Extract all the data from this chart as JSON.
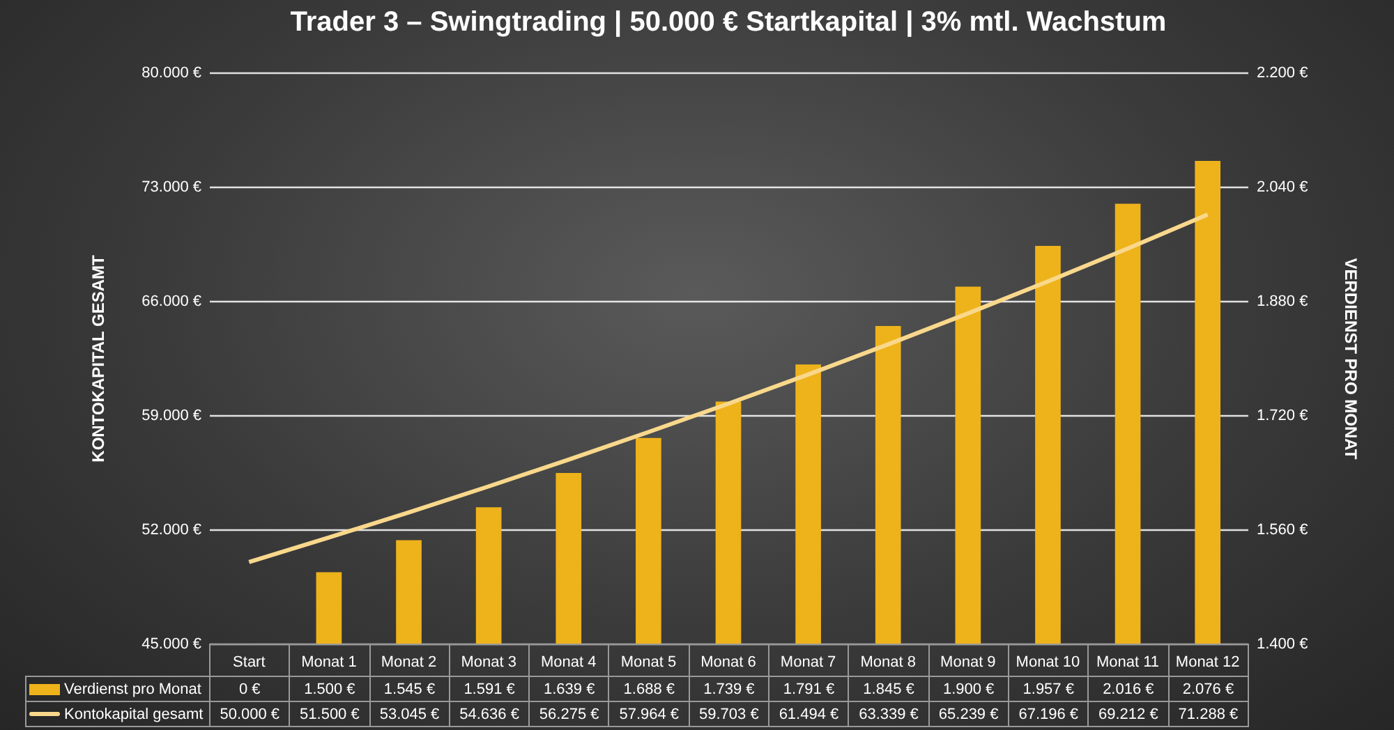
{
  "chart_data": {
    "type": "bar",
    "title": "Trader 3 – Swingtrading | 50.000 € Startkapital | 3% mtl. Wachstum",
    "ylabel": "KONTOKAPITAL GESAMT",
    "y2label": "VERDIENST PRO MONAT",
    "categories": [
      "Start",
      "Monat 1",
      "Monat 2",
      "Monat 3",
      "Monat 4",
      "Monat 5",
      "Monat 6",
      "Monat 7",
      "Monat 8",
      "Monat 9",
      "Monat 10",
      "Monat 11",
      "Monat 12"
    ],
    "series": [
      {
        "name": "Verdienst pro Monat",
        "axis": "y2",
        "color": "#eeb31a",
        "values": [
          null,
          1500,
          1545,
          1591,
          1639,
          1688,
          1739,
          1791,
          1845,
          1900,
          1957,
          2016,
          2076
        ],
        "value_labels": [
          "0 €",
          "1.500 €",
          "1.545 €",
          "1.591 €",
          "1.639 €",
          "1.688 €",
          "1.739 €",
          "1.791 €",
          "1.845 €",
          "1.900 €",
          "1.957 €",
          "2.016 €",
          "2.076 €"
        ]
      },
      {
        "name": "Kontokapital gesamt",
        "type": "line",
        "axis": "y",
        "color": "#f9d88c",
        "values": [
          50000,
          51500,
          53045,
          54636,
          56275,
          57964,
          59703,
          61494,
          63339,
          65239,
          67196,
          69212,
          71288
        ],
        "value_labels": [
          "50.000 €",
          "51.500 €",
          "53.045 €",
          "54.636 €",
          "56.275 €",
          "57.964 €",
          "59.703 €",
          "61.494 €",
          "63.339 €",
          "65.239 €",
          "67.196 €",
          "69.212 €",
          "71.288 €"
        ]
      }
    ],
    "ylim": [
      45000,
      80000
    ],
    "yticks": [
      {
        "value": 45000,
        "label": "45.000 €"
      },
      {
        "value": 52000,
        "label": "52.000 €"
      },
      {
        "value": 59000,
        "label": "59.000 €"
      },
      {
        "value": 66000,
        "label": "66.000 €"
      },
      {
        "value": 73000,
        "label": "73.000 €"
      },
      {
        "value": 80000,
        "label": "80.000 €"
      }
    ],
    "y2lim": [
      1400,
      2200
    ],
    "y2ticks": [
      {
        "value": 1400,
        "label": "1.400 €"
      },
      {
        "value": 1560,
        "label": "1.560 €"
      },
      {
        "value": 1720,
        "label": "1.720 €"
      },
      {
        "value": 1880,
        "label": "1.880 €"
      },
      {
        "value": 2040,
        "label": "2.040 €"
      },
      {
        "value": 2200,
        "label": "2.200 €"
      }
    ],
    "grid": "y",
    "legend": "bottom left"
  }
}
